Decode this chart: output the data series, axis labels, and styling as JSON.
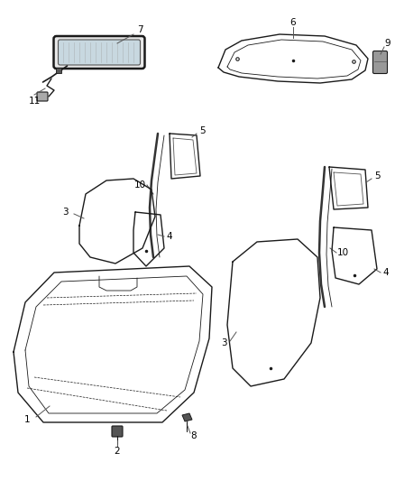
{
  "bg_color": "#ffffff",
  "line_color": "#1a1a1a",
  "figsize": [
    4.38,
    5.33
  ],
  "dpi": 100,
  "lw_main": 1.0,
  "lw_thick": 1.8,
  "lw_thin": 0.6
}
